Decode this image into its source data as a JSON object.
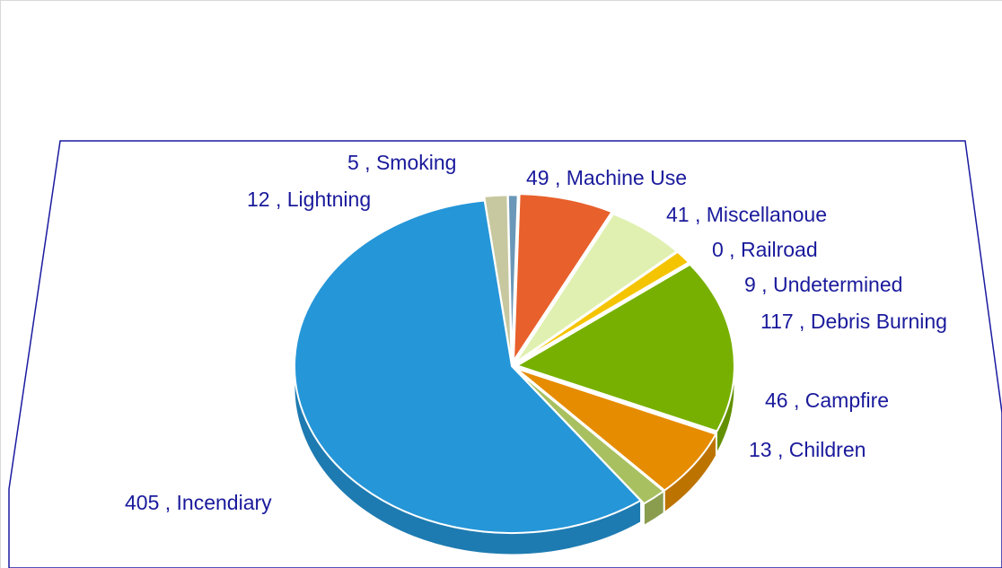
{
  "chart_data": {
    "type": "pie",
    "title": "",
    "label_format": "value , category",
    "slices": [
      {
        "label": "Smoking",
        "value": 5,
        "color": "#6b97b8"
      },
      {
        "label": "Machine Use",
        "value": 49,
        "color": "#e8602c"
      },
      {
        "label": "Miscellanoue",
        "value": 41,
        "color": "#e0f0b0"
      },
      {
        "label": "Railroad",
        "value": 0,
        "color": "#f5c400"
      },
      {
        "label": "Undetermined",
        "value": 9,
        "color": "#f5c400"
      },
      {
        "label": "Debris Burning",
        "value": 117,
        "color": "#77b000"
      },
      {
        "label": "Campfire",
        "value": 46,
        "color": "#e68c00"
      },
      {
        "label": "Children",
        "value": 13,
        "color": "#a8c060"
      },
      {
        "label": "Incendiary",
        "value": 405,
        "color": "#2596d8"
      },
      {
        "label": "Lightning",
        "value": 12,
        "color": "#c8c8a0"
      }
    ],
    "legend": "none",
    "style": "3d-tilted"
  }
}
